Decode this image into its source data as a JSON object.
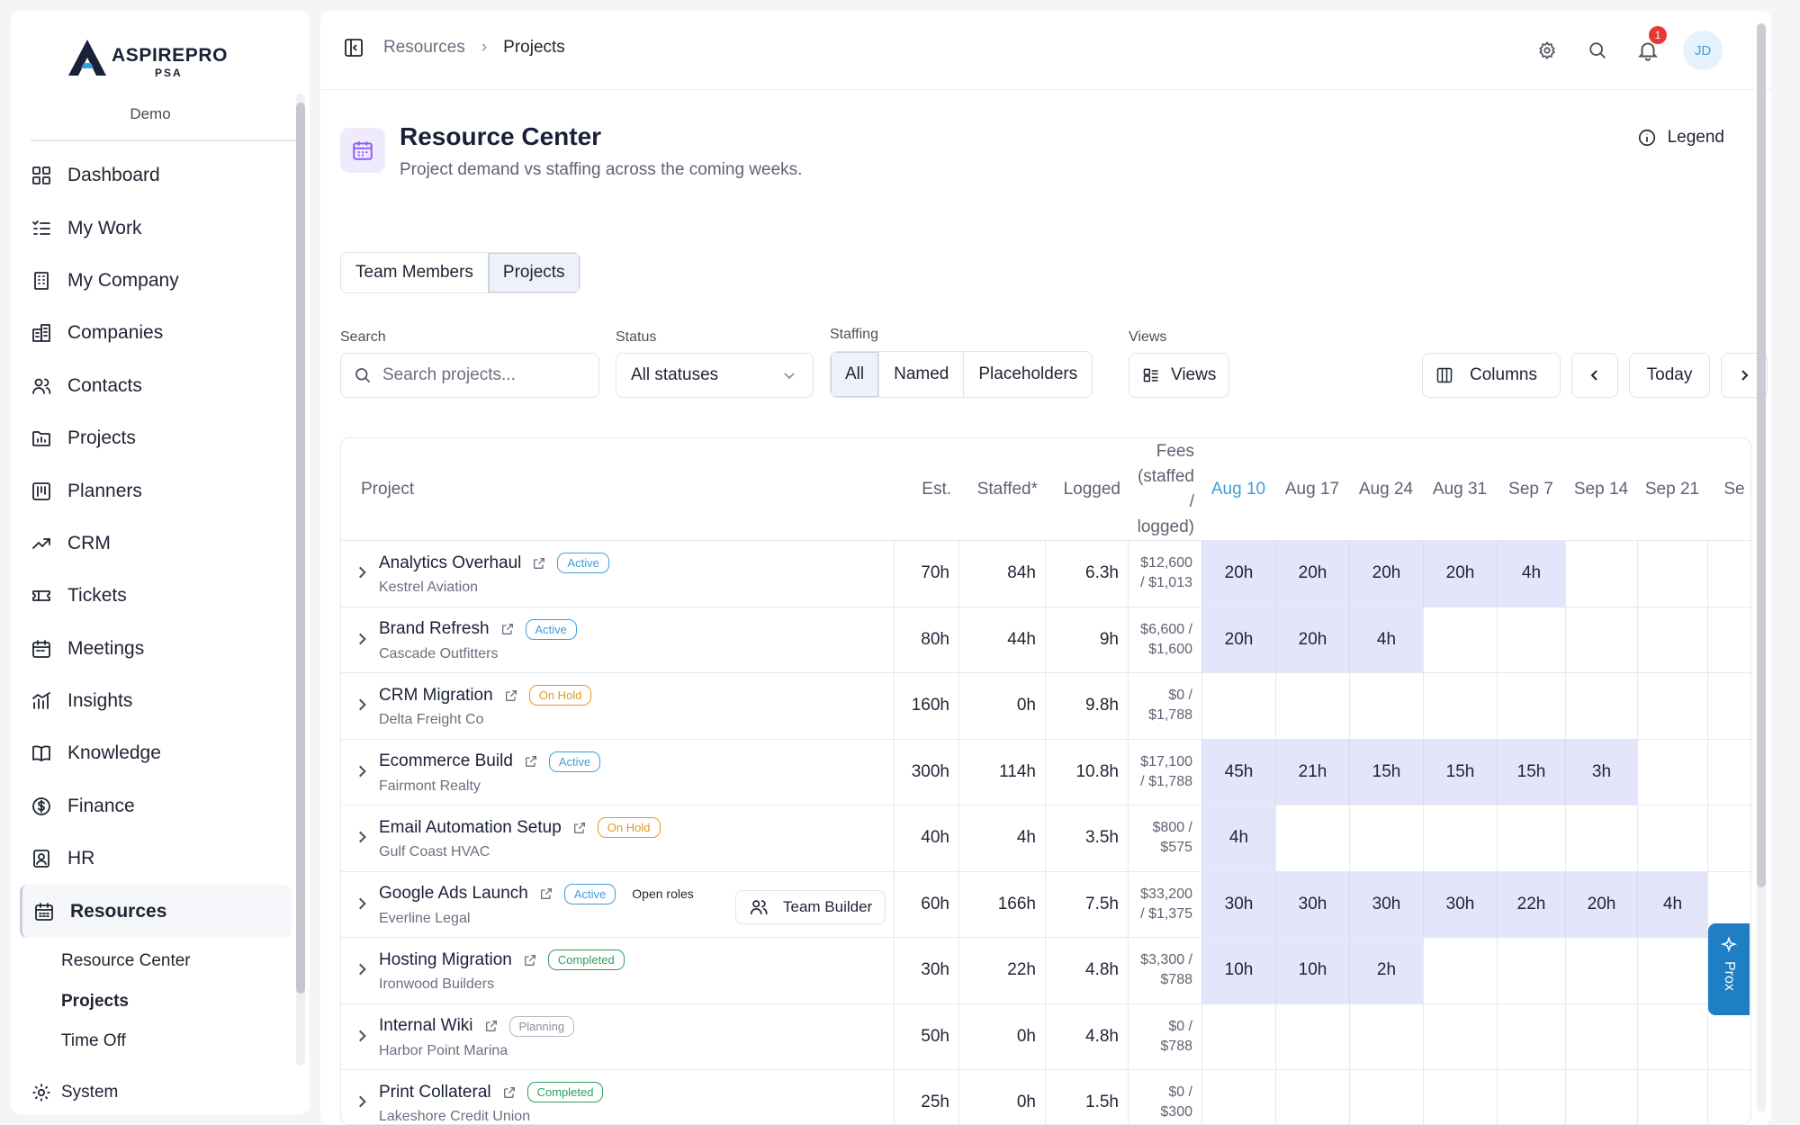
{
  "brand": {
    "name": "ASPIREPRO",
    "sub": "PSA",
    "org": "Demo"
  },
  "nav": [
    {
      "label": "Dashboard",
      "icon": "grid-icon"
    },
    {
      "label": "My Work",
      "icon": "list-check-icon"
    },
    {
      "label": "My Company",
      "icon": "building-icon"
    },
    {
      "label": "Companies",
      "icon": "buildings-icon"
    },
    {
      "label": "Contacts",
      "icon": "users-icon"
    },
    {
      "label": "Projects",
      "icon": "folder-icon"
    },
    {
      "label": "Planners",
      "icon": "kanban-icon"
    },
    {
      "label": "CRM",
      "icon": "trend-icon"
    },
    {
      "label": "Tickets",
      "icon": "ticket-icon"
    },
    {
      "label": "Meetings",
      "icon": "calendar-icon"
    },
    {
      "label": "Insights",
      "icon": "chart-icon"
    },
    {
      "label": "Knowledge",
      "icon": "book-icon"
    },
    {
      "label": "Finance",
      "icon": "dollar-icon"
    },
    {
      "label": "HR",
      "icon": "badge-icon"
    },
    {
      "label": "Resources",
      "icon": "calendar-grid-icon"
    }
  ],
  "sub_nav": [
    "Resource Center",
    "Projects",
    "Time Off"
  ],
  "system_label": "System",
  "breadcrumb": {
    "parent": "Resources",
    "current": "Projects"
  },
  "notifications_count": "1",
  "avatar_initials": "JD",
  "page": {
    "title": "Resource Center",
    "subtitle": "Project demand vs staffing across the coming weeks.",
    "legend": "Legend"
  },
  "toggle": {
    "team": "Team Members",
    "projects": "Projects"
  },
  "filters": {
    "search_label": "Search",
    "search_placeholder": "Search projects...",
    "status_label": "Status",
    "status_value": "All statuses",
    "staffing_label": "Staffing",
    "staffing_options": [
      "All",
      "Named",
      "Placeholders"
    ],
    "views_label": "Views",
    "views_button": "Views",
    "columns": "Columns",
    "today": "Today"
  },
  "table": {
    "col_project": "Project",
    "col_est": "Est.",
    "col_staffed": "Staffed*",
    "col_logged": "Logged",
    "col_fees": [
      "Fees",
      "(staffed",
      "/",
      "logged)"
    ],
    "weeks": [
      "Aug 10",
      "Aug 17",
      "Aug 24",
      "Aug 31",
      "Sep 7",
      "Sep 14",
      "Sep 21",
      "Se"
    ],
    "rows": [
      {
        "name": "Analytics Overhaul",
        "client": "Kestrel Aviation",
        "status": "Active",
        "est": "70h",
        "staffed": "84h",
        "logged": "6.3h",
        "fees1": "$12,600",
        "fees2": "/ $1,013",
        "weeks": [
          "20h",
          "20h",
          "20h",
          "20h",
          "4h",
          "",
          "",
          ""
        ]
      },
      {
        "name": "Brand Refresh",
        "client": "Cascade Outfitters",
        "status": "Active",
        "est": "80h",
        "staffed": "44h",
        "logged": "9h",
        "fees1": "$6,600 /",
        "fees2": "$1,600",
        "weeks": [
          "20h",
          "20h",
          "4h",
          "",
          "",
          "",
          "",
          ""
        ]
      },
      {
        "name": "CRM Migration",
        "client": "Delta Freight Co",
        "status": "On Hold",
        "est": "160h",
        "staffed": "0h",
        "logged": "9.8h",
        "fees1": "$0 /",
        "fees2": "$1,788",
        "weeks": [
          "",
          "",
          "",
          "",
          "",
          "",
          "",
          ""
        ]
      },
      {
        "name": "Ecommerce Build",
        "client": "Fairmont Realty",
        "status": "Active",
        "est": "300h",
        "staffed": "114h",
        "logged": "10.8h",
        "fees1": "$17,100",
        "fees2": "/ $1,788",
        "weeks": [
          "45h",
          "21h",
          "15h",
          "15h",
          "15h",
          "3h",
          "",
          ""
        ]
      },
      {
        "name": "Email Automation Setup",
        "client": "Gulf Coast HVAC",
        "status": "On Hold",
        "est": "40h",
        "staffed": "4h",
        "logged": "3.5h",
        "fees1": "$800 /",
        "fees2": "$575",
        "weeks": [
          "4h",
          "",
          "",
          "",
          "",
          "",
          "",
          ""
        ]
      },
      {
        "name": "Google Ads Launch",
        "client": "Everline Legal",
        "status": "Active",
        "open_roles": "Open roles",
        "team_builder": "Team Builder",
        "est": "60h",
        "staffed": "166h",
        "logged": "7.5h",
        "fees1": "$33,200",
        "fees2": "/ $1,375",
        "weeks": [
          "30h",
          "30h",
          "30h",
          "30h",
          "22h",
          "20h",
          "4h",
          ""
        ]
      },
      {
        "name": "Hosting Migration",
        "client": "Ironwood Builders",
        "status": "Completed",
        "est": "30h",
        "staffed": "22h",
        "logged": "4.8h",
        "fees1": "$3,300 /",
        "fees2": "$788",
        "weeks": [
          "10h",
          "10h",
          "2h",
          "",
          "",
          "",
          "",
          ""
        ]
      },
      {
        "name": "Internal Wiki",
        "client": "Harbor Point Marina",
        "status": "Planning",
        "est": "50h",
        "staffed": "0h",
        "logged": "4.8h",
        "fees1": "$0 /",
        "fees2": "$788",
        "weeks": [
          "",
          "",
          "",
          "",
          "",
          "",
          "",
          ""
        ]
      },
      {
        "name": "Print Collateral",
        "client": "Lakeshore Credit Union",
        "status": "Completed",
        "est": "25h",
        "staffed": "0h",
        "logged": "1.5h",
        "fees1": "$0 /",
        "fees2": "$300",
        "weeks": [
          "",
          "",
          "",
          "",
          "",
          "",
          "",
          ""
        ]
      }
    ]
  },
  "assistant_label": "Prox",
  "colors": {
    "accent": "#3aa0dc",
    "fill": "#e3e6fb",
    "brand": "#1a2038"
  }
}
